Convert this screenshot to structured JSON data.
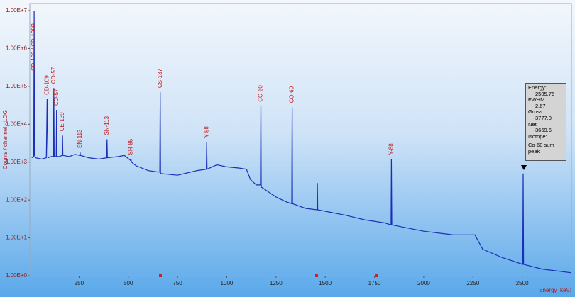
{
  "chart_data": {
    "type": "line",
    "x_label": "Energy [keV]",
    "y_label": "Counts / channel - LOG",
    "yscale": "log",
    "xlim": [
      0,
      2750
    ],
    "ylim": [
      1,
      10000000
    ],
    "xticks": [
      250,
      500,
      750,
      1000,
      1250,
      1500,
      1750,
      2000,
      2250,
      2500
    ],
    "yticks": [
      {
        "value": 1,
        "label": "1.00E+0"
      },
      {
        "value": 10,
        "label": "1.00E+1"
      },
      {
        "value": 100,
        "label": "1.00E+2"
      },
      {
        "value": 1000,
        "label": "1.00E+3"
      },
      {
        "value": 10000,
        "label": "1.00E+4"
      },
      {
        "value": 100000,
        "label": "1.00E+5"
      },
      {
        "value": 1000000,
        "label": "1.00E+6"
      },
      {
        "value": 10000000,
        "label": "1.00E+7"
      }
    ],
    "series": [
      {
        "color": "#1a2fb8",
        "x": [
          10,
          20,
          22,
          24,
          30,
          60,
          84,
          88,
          92,
          110,
          120,
          122,
          124,
          134,
          136,
          138,
          150,
          164,
          166,
          168,
          200,
          230,
          253,
          255,
          257,
          300,
          350,
          390,
          392,
          394,
          450,
          480,
          512,
          514,
          516,
          540,
          600,
          650,
          660,
          662,
          664,
          750,
          850,
          896,
          898,
          900,
          950,
          1000,
          1060,
          1100,
          1120,
          1150,
          1171,
          1173,
          1175,
          1250,
          1300,
          1330,
          1332,
          1334,
          1400,
          1458,
          1460,
          1462,
          1600,
          1700,
          1800,
          1834,
          1836,
          1838,
          2000,
          2150,
          2260,
          2300,
          2400,
          2503,
          2505,
          2507,
          2600,
          2750
        ],
        "values": [
          1300,
          1400,
          10000000,
          1500,
          1300,
          1200,
          1300,
          46000,
          1300,
          1400,
          1400,
          90000,
          1400,
          1400,
          24000,
          1400,
          1400,
          1500,
          5000,
          1500,
          1400,
          1600,
          1500,
          1800,
          1500,
          1300,
          1200,
          1300,
          4000,
          1300,
          1400,
          1500,
          1100,
          1200,
          1000,
          800,
          600,
          550,
          550,
          70000,
          500,
          450,
          600,
          650,
          3400,
          650,
          850,
          750,
          700,
          650,
          350,
          250,
          250,
          30000,
          220,
          120,
          90,
          80,
          28000,
          80,
          60,
          55,
          280,
          55,
          40,
          30,
          25,
          22,
          1200,
          22,
          15,
          12,
          12,
          5,
          3,
          2,
          500,
          2,
          1.5,
          1.2
        ]
      }
    ],
    "annotations": [
      {
        "text": "CD-109 / CD-109B",
        "x": 22
      },
      {
        "text": "CD-109",
        "x": 88
      },
      {
        "text": "CO-57",
        "x": 122
      },
      {
        "text": "CO-57",
        "x": 136
      },
      {
        "text": "CE-139",
        "x": 166
      },
      {
        "text": "SN-113",
        "x": 255
      },
      {
        "text": "SN-113",
        "x": 392
      },
      {
        "text": "SR-85",
        "x": 514
      },
      {
        "text": "CS-137",
        "x": 662
      },
      {
        "text": "Y-88",
        "x": 898
      },
      {
        "text": "CO-60",
        "x": 1173
      },
      {
        "text": "CO-60",
        "x": 1332
      },
      {
        "text": "Y-88",
        "x": 1836
      }
    ],
    "tooltip": [
      "Energy:",
      "2505.76",
      "FWHM:",
      "2.67",
      "Gross:",
      "3777.0",
      "Net:",
      "3669.6",
      "Isotope:",
      "Co-60 sum peak"
    ]
  }
}
